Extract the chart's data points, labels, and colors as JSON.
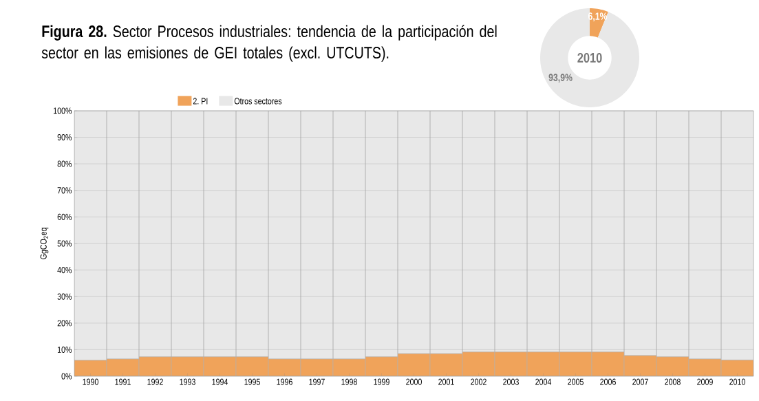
{
  "chart_data": [
    {
      "type": "bar",
      "stacked": true,
      "title": "**Figura 28.** Sector Procesos industriales: tendencia de la participación del sector en las emisiones de GEI totales (excl. UTCUTS).",
      "ylabel": "GgCO$_{2}$eq",
      "categories": [
        "1990",
        "1991",
        "1992",
        "1993",
        "1994",
        "1995",
        "1996",
        "1997",
        "1998",
        "1999",
        "2000",
        "2001",
        "2002",
        "2003",
        "2004",
        "2005",
        "2006",
        "2007",
        "2008",
        "2009",
        "2010"
      ],
      "series": [
        {
          "name": "2. PI",
          "color": "#f0a35a",
          "values": [
            6.0,
            6.5,
            7.3,
            7.3,
            7.3,
            7.3,
            6.5,
            6.5,
            6.5,
            7.3,
            8.5,
            8.5,
            9.1,
            9.1,
            9.1,
            9.1,
            9.1,
            7.8,
            7.3,
            6.5,
            6.1
          ]
        },
        {
          "name": "Otros sectores",
          "color": "#e8e8e8",
          "values": [
            94.0,
            93.5,
            92.7,
            92.7,
            92.7,
            92.7,
            93.5,
            93.5,
            93.5,
            92.7,
            91.5,
            91.5,
            90.9,
            90.9,
            90.9,
            90.9,
            90.9,
            92.2,
            92.7,
            93.5,
            93.9
          ]
        }
      ],
      "ylim": [
        0,
        100
      ],
      "yticks": [
        {
          "value": 0,
          "label": "0%"
        },
        {
          "value": 10,
          "label": "10%"
        },
        {
          "value": 20,
          "label": "20%"
        },
        {
          "value": 30,
          "label": "30%"
        },
        {
          "value": 40,
          "label": "40%"
        },
        {
          "value": 50,
          "label": "50%"
        },
        {
          "value": 60,
          "label": "60%"
        },
        {
          "value": 70,
          "label": "70%"
        },
        {
          "value": 80,
          "label": "80%"
        },
        {
          "value": 90,
          "label": "90%"
        },
        {
          "value": 100,
          "label": "100%"
        }
      ],
      "grid": "y",
      "legend": "top"
    },
    {
      "type": "donut",
      "title": "2010",
      "categories": [
        null,
        null
      ],
      "values": [
        6.1,
        93.9
      ],
      "colors": [
        "#f0a35a",
        "#e8e8e8"
      ],
      "value_labels": [
        "6,1%",
        "93,9%"
      ]
    }
  ]
}
